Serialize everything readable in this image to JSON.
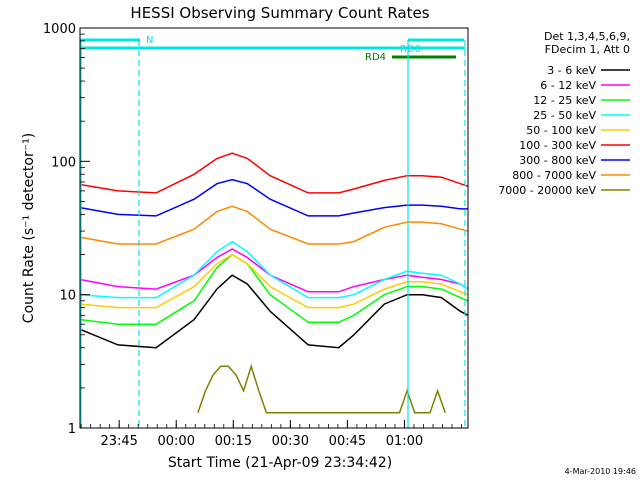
{
  "chart_data": {
    "type": "line",
    "title": "HESSI Observing Summary Count Rates",
    "xlabel": "Start Time (21-Apr-09 23:34:42)",
    "ylabel": "Count Rate (s⁻¹ detector⁻¹)",
    "yscale": "log",
    "ylim": [
      1,
      1000
    ],
    "xlim_minutes": [
      0,
      102
    ],
    "x_ticks": [
      "23:45",
      "00:00",
      "00:15",
      "00:30",
      "00:45",
      "01:00"
    ],
    "x_tick_minutes": [
      10.3,
      25.3,
      40.3,
      55.3,
      70.3,
      85.3
    ],
    "y_ticks": [
      "1",
      "10",
      "100",
      "1000"
    ],
    "y_tick_values": [
      1,
      10,
      100,
      1000
    ],
    "legend": {
      "placement": "right",
      "header": [
        "Det 1,3,4,5,6,9,",
        "FDecim 1, Att 0"
      ],
      "entries": [
        {
          "label": "3 - 6 keV",
          "color": "#000000"
        },
        {
          "label": "6 - 12 keV",
          "color": "#ff00ff"
        },
        {
          "label": "12 - 25 keV",
          "color": "#00ff00"
        },
        {
          "label": "25 - 50 keV",
          "color": "#00ffff"
        },
        {
          "label": "50 - 100 keV",
          "color": "#ffcc00"
        },
        {
          "label": "100 - 300 keV",
          "color": "#ff0000"
        },
        {
          "label": "300 - 800 keV",
          "color": "#0000ff"
        },
        {
          "label": "800 - 7000 keV",
          "color": "#ff8800"
        },
        {
          "label": "7000 - 20000 keV",
          "color": "#808000"
        }
      ]
    },
    "flags": [
      {
        "label": "N",
        "color": "#00e5e5"
      },
      {
        "label": "RD0",
        "color": "#00e5e5"
      },
      {
        "label": "RD4",
        "color": "#008000"
      }
    ],
    "series": [
      {
        "name": "3 - 6 keV",
        "color": "#000000",
        "x": [
          0,
          10,
          20,
          30,
          36,
          40,
          44,
          50,
          60,
          68,
          72,
          80,
          86,
          90,
          95,
          100,
          102
        ],
        "y": [
          5.5,
          4.2,
          4.0,
          6.5,
          11,
          14,
          12,
          7.5,
          4.2,
          4.0,
          5.0,
          8.5,
          10,
          10,
          9.5,
          7.5,
          7
        ]
      },
      {
        "name": "6 - 12 keV",
        "color": "#ff00ff",
        "x": [
          0,
          10,
          20,
          30,
          36,
          40,
          44,
          50,
          60,
          68,
          72,
          80,
          86,
          90,
          95,
          100,
          102
        ],
        "y": [
          13,
          11.5,
          11,
          14,
          19,
          22,
          19,
          14,
          10.5,
          10.5,
          11.5,
          13,
          14,
          13.5,
          13,
          12,
          11
        ]
      },
      {
        "name": "12 - 25 keV",
        "color": "#00ff00",
        "x": [
          0,
          10,
          20,
          30,
          36,
          40,
          44,
          50,
          60,
          68,
          72,
          80,
          86,
          90,
          95,
          100,
          102
        ],
        "y": [
          6.5,
          6.0,
          6.0,
          9.0,
          16,
          20,
          17,
          10,
          6.2,
          6.2,
          7.0,
          10,
          11.5,
          11.5,
          11,
          9.5,
          9
        ]
      },
      {
        "name": "25 - 50 keV",
        "color": "#00ffff",
        "x": [
          0,
          10,
          20,
          30,
          36,
          40,
          44,
          50,
          60,
          68,
          72,
          80,
          86,
          90,
          95,
          100,
          102
        ],
        "y": [
          10,
          9.5,
          9.5,
          14,
          21,
          25,
          21,
          14,
          9.5,
          9.5,
          10,
          13,
          15,
          14.5,
          14,
          12,
          11
        ]
      },
      {
        "name": "50 - 100 keV",
        "color": "#ffcc00",
        "x": [
          0,
          10,
          20,
          30,
          36,
          40,
          44,
          50,
          60,
          68,
          72,
          80,
          86,
          90,
          95,
          100,
          102
        ],
        "y": [
          8.5,
          8.0,
          8.0,
          11.5,
          17,
          20,
          17,
          11.5,
          8.0,
          8.0,
          8.5,
          11,
          12.5,
          12.5,
          12,
          10.5,
          10
        ]
      },
      {
        "name": "100 - 300 keV",
        "color": "#ff0000",
        "x": [
          0,
          10,
          20,
          30,
          36,
          40,
          44,
          50,
          60,
          68,
          72,
          80,
          86,
          90,
          95,
          100,
          102
        ],
        "y": [
          67,
          60,
          58,
          80,
          105,
          115,
          105,
          78,
          58,
          58,
          62,
          72,
          78,
          78,
          76,
          68,
          65
        ]
      },
      {
        "name": "300 - 800 keV",
        "color": "#0000ff",
        "x": [
          0,
          10,
          20,
          30,
          36,
          40,
          44,
          50,
          60,
          68,
          72,
          80,
          86,
          90,
          95,
          100,
          102
        ],
        "y": [
          45,
          40,
          39,
          52,
          68,
          73,
          68,
          52,
          39,
          39,
          41,
          45,
          47,
          47,
          46,
          44,
          44
        ]
      },
      {
        "name": "800 - 7000 keV",
        "color": "#ff8800",
        "x": [
          0,
          10,
          20,
          30,
          36,
          40,
          44,
          50,
          60,
          68,
          72,
          80,
          86,
          90,
          95,
          100,
          102
        ],
        "y": [
          27,
          24,
          24,
          31,
          42,
          46,
          42,
          31,
          24,
          24,
          25,
          32,
          35,
          35,
          34,
          31,
          30
        ]
      },
      {
        "name": "7000 - 20000 keV",
        "color": "#808000",
        "x": [
          31,
          33,
          35,
          37,
          39,
          41,
          43,
          45,
          47,
          49,
          51,
          84,
          86,
          88,
          90,
          92,
          94,
          96
        ],
        "y": [
          1.3,
          1.9,
          2.5,
          2.9,
          2.9,
          2.5,
          1.9,
          2.9,
          1.9,
          1.3,
          1.3,
          1.3,
          1.9,
          1.3,
          1.3,
          1.3,
          1.9,
          1.3
        ]
      }
    ]
  },
  "footer_date": "4-Mar-2010 19:46"
}
